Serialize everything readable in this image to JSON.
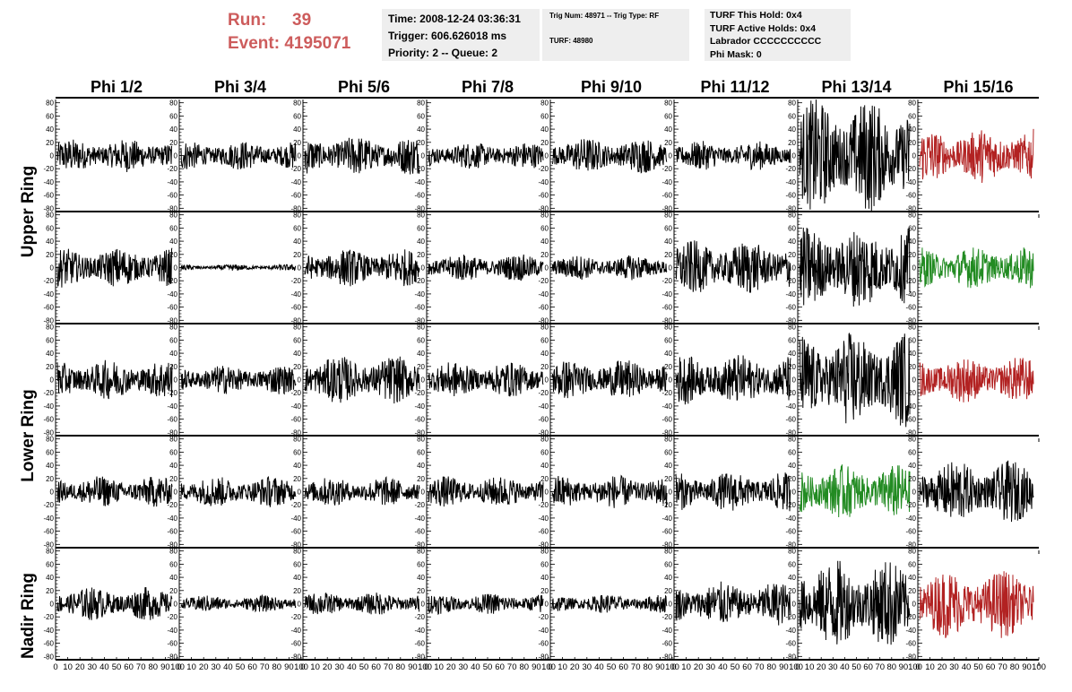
{
  "header": {
    "run_label": "Run:",
    "run_value": "39",
    "event_label": "Event:",
    "event_value": "4195071",
    "time_line": "Time: 2008-12-24 03:36:31",
    "trigger_line": "Trigger: 606.626018 ms",
    "priority_line": "Priority: 2 -- Queue: 2",
    "trig_num_line": "Trig Num: 48971 -- Trig Type: RF",
    "turf_line": "TURF: 48980",
    "turf_hold_line": "TURF This Hold: 0x4",
    "turf_active_line": "TURF Active Holds: 0x4",
    "labrador_line": "Labrador CCCCCCCCCC",
    "phi_mask_line": "Phi Mask: 0"
  },
  "colors": {
    "header_text": "#cd5c5c",
    "trace_default": "#000000",
    "trace_red": "#b22222",
    "trace_green": "#228b22",
    "info_box": "#eeeeee"
  },
  "chart_data": {
    "type": "line",
    "columns": [
      "Phi 1/2",
      "Phi 3/4",
      "Phi 5/6",
      "Phi 7/8",
      "Phi 9/10",
      "Phi 11/12",
      "Phi 13/14",
      "Phi 15/16"
    ],
    "ring_labels": [
      "Upper Ring",
      "Lower Ring",
      "Nadir Ring"
    ],
    "ylim": [
      -85,
      85
    ],
    "yticks": [
      "80",
      "60",
      "40",
      "20",
      "0",
      "-20",
      "-40",
      "-60",
      "-80"
    ],
    "xlim": [
      0,
      100
    ],
    "xticks": [
      "0",
      "10",
      "20",
      "30",
      "40",
      "50",
      "60",
      "70",
      "80",
      "90",
      "100"
    ],
    "panel_amplitude": [
      [
        16,
        14,
        19,
        13,
        17,
        14,
        55,
        26
      ],
      [
        19,
        3,
        18,
        13,
        12,
        26,
        40,
        20
      ],
      [
        19,
        14,
        23,
        17,
        19,
        24,
        46,
        22
      ],
      [
        15,
        15,
        14,
        15,
        16,
        19,
        26,
        30
      ],
      [
        16,
        8,
        11,
        10,
        9,
        21,
        43,
        33
      ]
    ],
    "panel_color": [
      [
        "default",
        "default",
        "default",
        "default",
        "default",
        "default",
        "default",
        "red"
      ],
      [
        "default",
        "default",
        "default",
        "default",
        "default",
        "default",
        "default",
        "green"
      ],
      [
        "default",
        "default",
        "default",
        "default",
        "default",
        "default",
        "default",
        "red"
      ],
      [
        "default",
        "default",
        "default",
        "default",
        "default",
        "default",
        "green",
        "default"
      ],
      [
        "default",
        "default",
        "default",
        "default",
        "default",
        "default",
        "default",
        "red"
      ]
    ],
    "grid": false
  }
}
